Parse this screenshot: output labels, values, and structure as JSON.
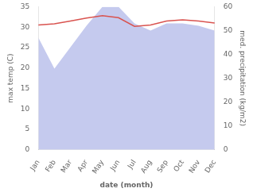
{
  "chart_data": {
    "type": "line",
    "categories": [
      "Jan",
      "Feb",
      "Mar",
      "Apr",
      "May",
      "Jun",
      "Jul",
      "Aug",
      "Sep",
      "Oct",
      "Nov",
      "Dec"
    ],
    "xlabel": "date (month)",
    "ylabel": "max temp (C)",
    "y2label": "med. precipitation (kg/m2)",
    "series": [
      {
        "type": "line",
        "color": "#d9534f",
        "values": [
          30.5,
          30.8,
          31.5,
          32.2,
          32.8,
          32.3,
          30.2,
          30.5,
          31.5,
          31.8,
          31.5,
          31.0
        ]
      },
      {
        "type": "area",
        "color": "#c5caee",
        "axis": "y2",
        "values": [
          47,
          34,
          43,
          52,
          60,
          60,
          53,
          50,
          53,
          53,
          52,
          50
        ]
      }
    ],
    "ylim": [
      0,
      35
    ],
    "yticks": [
      0,
      5,
      10,
      15,
      20,
      25,
      30,
      35
    ],
    "y2lim": [
      0,
      60
    ],
    "y2ticks": [
      0,
      10,
      20,
      30,
      40,
      50,
      60
    ],
    "grid": false
  }
}
